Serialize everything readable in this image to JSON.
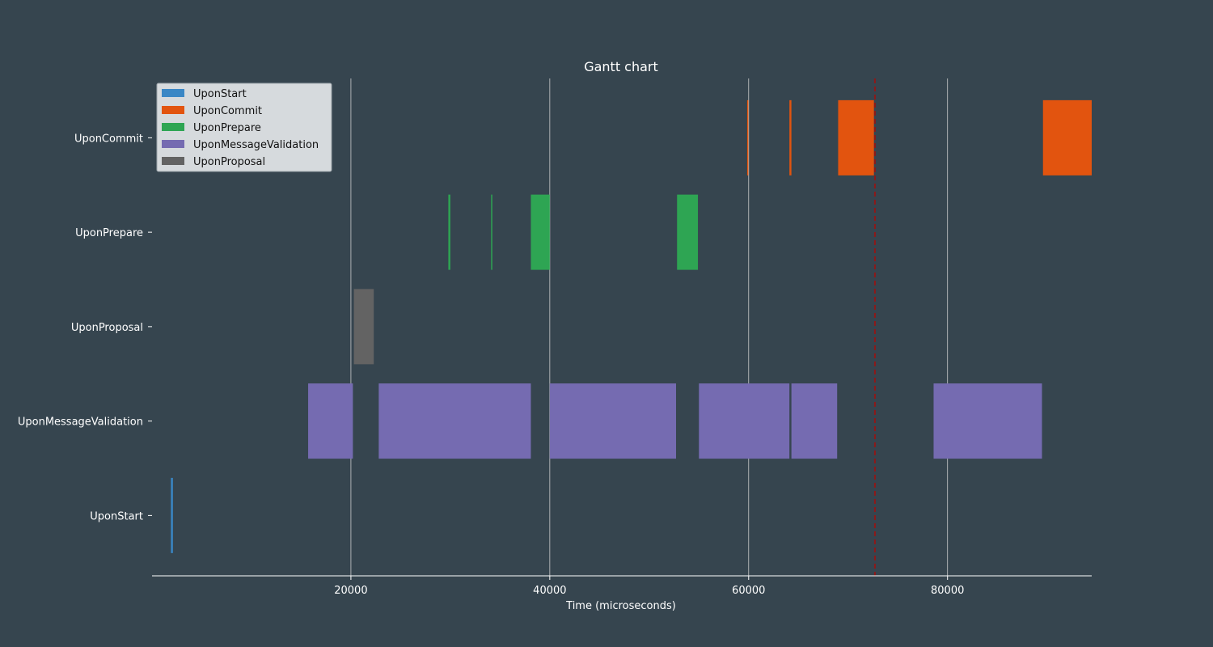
{
  "colors": {
    "background": "#36454f",
    "text": "#ffffff",
    "grid": "#cccccc",
    "axis": "#ffffff",
    "marker": "#8b1a1a",
    "legend_bg": "#d6dadd",
    "legend_border": "#9aa2a8",
    "legend_text": "#111111"
  },
  "chart_data": {
    "type": "gantt",
    "title": "Gantt chart",
    "xlabel": "Time (microseconds)",
    "ylabel": "",
    "xlim": [
      0,
      94500
    ],
    "xticks": [
      20000,
      40000,
      60000,
      80000
    ],
    "categories": [
      "UponCommit",
      "UponPrepare",
      "UponProposal",
      "UponMessageValidation",
      "UponStart"
    ],
    "grid": "vertical",
    "legend_position": "top-left",
    "marker_line": {
      "x": 72700,
      "style": "dashed"
    },
    "series": [
      {
        "name": "UponStart",
        "color": "#3a87c5",
        "row": "UponStart",
        "intervals": [
          [
            1900,
            2100
          ]
        ]
      },
      {
        "name": "UponCommit",
        "color": "#e2540f",
        "row": "UponCommit",
        "intervals": [
          [
            59850,
            59950
          ],
          [
            64100,
            64300
          ],
          [
            69000,
            72600
          ],
          [
            89600,
            94600
          ]
        ]
      },
      {
        "name": "UponPrepare",
        "color": "#2ea553",
        "row": "UponPrepare",
        "intervals": [
          [
            29800,
            30000
          ],
          [
            34100,
            34200
          ],
          [
            38100,
            40000
          ],
          [
            52800,
            54900
          ]
        ]
      },
      {
        "name": "UponMessageValidation",
        "color": "#756bb1",
        "row": "UponMessageValidation",
        "intervals": [
          [
            15700,
            20200
          ],
          [
            22800,
            38100
          ],
          [
            40000,
            52700
          ],
          [
            55000,
            64100
          ],
          [
            64300,
            68900
          ],
          [
            78600,
            89500
          ]
        ]
      },
      {
        "name": "UponProposal",
        "color": "#636363",
        "row": "UponProposal",
        "intervals": [
          [
            20300,
            22300
          ]
        ]
      }
    ]
  }
}
